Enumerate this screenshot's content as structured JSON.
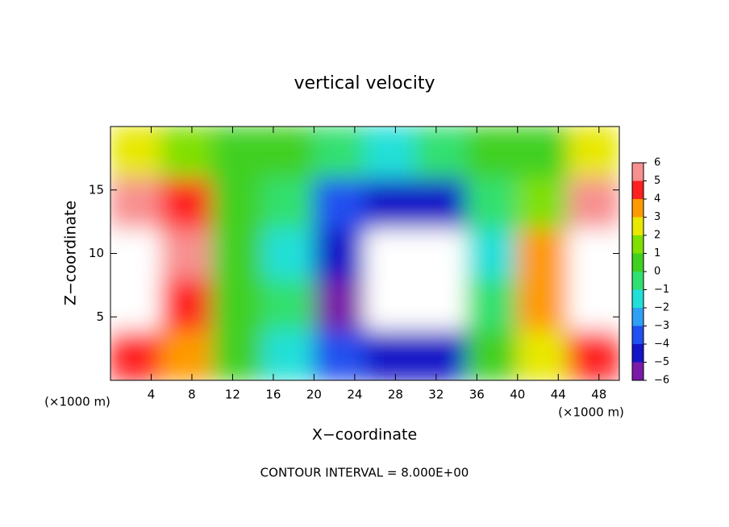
{
  "chart_data": {
    "type": "heatmap",
    "title": "vertical velocity",
    "xlabel": "X−coordinate",
    "ylabel": "Z−coordinate",
    "x_unit_left": "(×1000 m)",
    "x_unit_right": "(×1000 m)",
    "footnote": "CONTOUR INTERVAL = 8.000E+00",
    "xlim": [
      0,
      50
    ],
    "ylim": [
      0,
      20
    ],
    "xticks": [
      4,
      8,
      12,
      16,
      20,
      24,
      28,
      32,
      36,
      40,
      44,
      48
    ],
    "yticks": [
      5,
      10,
      15
    ],
    "x_bins": [
      0,
      5,
      10,
      15,
      20,
      25,
      30,
      35,
      40,
      45,
      50
    ],
    "y_bins": [
      0,
      4,
      8,
      12,
      16,
      20
    ],
    "values": [
      [
        4,
        3,
        0,
        -2,
        -4,
        -5,
        -5,
        0,
        2,
        4
      ],
      [
        7,
        4,
        0,
        -1,
        -6,
        -8,
        -7,
        -1,
        3,
        7
      ],
      [
        8,
        5,
        0,
        -2,
        -5,
        -8,
        -7,
        -2,
        3,
        8
      ],
      [
        5,
        4,
        0,
        -1,
        -4,
        -5,
        -5,
        -1,
        1,
        5
      ],
      [
        2,
        1,
        0.5,
        0,
        -1,
        -2,
        -1,
        0,
        0.5,
        2
      ]
    ],
    "colorbar_ticks": [
      6,
      5,
      4,
      3,
      2,
      1,
      0,
      {
        "value": -1,
        "label": "−1"
      },
      {
        "value": -2,
        "label": "−2"
      },
      {
        "value": -3,
        "label": "−3"
      },
      {
        "value": -4,
        "label": "−4"
      },
      {
        "value": -5,
        "label": "−5"
      },
      {
        "value": -6,
        "label": "−6"
      }
    ],
    "colorbar_lim": [
      -6,
      6
    ],
    "colors": [
      "#7a1aa8",
      "#1414c8",
      "#2050f0",
      "#2fa0f5",
      "#20e0d8",
      "#30e070",
      "#40d020",
      "#80e000",
      "#e8e800",
      "#ff9a00",
      "#ff2020",
      "#f89090"
    ],
    "out_of_range_color": "#ffffff"
  }
}
